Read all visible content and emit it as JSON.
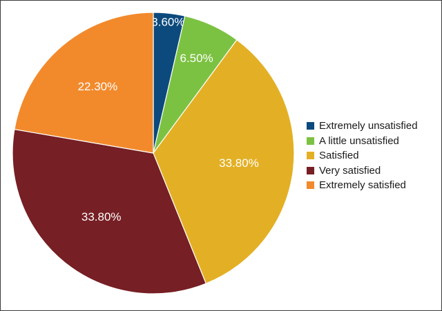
{
  "chart_data": {
    "type": "pie",
    "title": "",
    "legend_position": "right",
    "slices": [
      {
        "label": "Extremely unsatisfied",
        "value": 3.6,
        "value_label": "3.60%",
        "color": "#0c4a7d"
      },
      {
        "label": "A little unsatisfied",
        "value": 6.5,
        "value_label": "6.50%",
        "color": "#7cc242"
      },
      {
        "label": "Satisfied",
        "value": 33.8,
        "value_label": "33.80%",
        "color": "#e3b025"
      },
      {
        "label": "Very satisfied",
        "value": 33.8,
        "value_label": "33.80%",
        "color": "#761f24"
      },
      {
        "label": "Extremely satisfied",
        "value": 22.3,
        "value_label": "22.30%",
        "color": "#f28a2c"
      }
    ]
  }
}
